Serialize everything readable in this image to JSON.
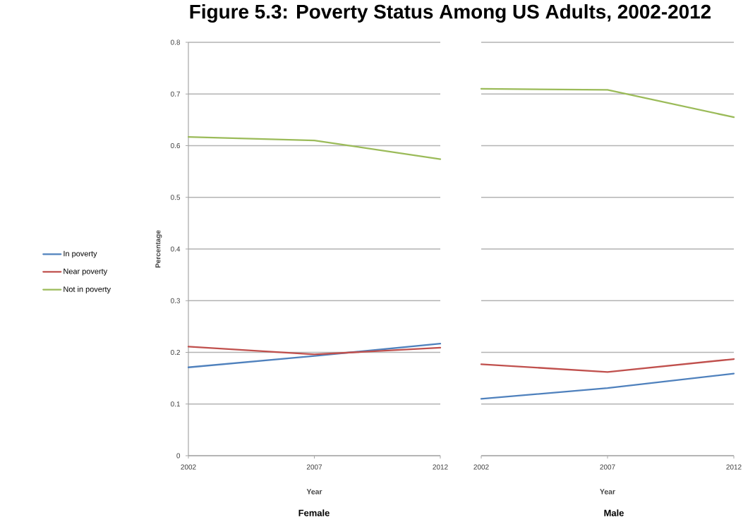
{
  "chart_data": [
    {
      "type": "line",
      "title": "Figure 5.3: Poverty Status Among US Adults, 2002-2012",
      "subtitle": "Female",
      "xlabel": "Year",
      "ylabel": "Percentage",
      "x": [
        2002,
        2007,
        2012
      ],
      "series": [
        {
          "name": "In poverty",
          "color": "#4f81bd",
          "values": [
            0.171,
            0.193,
            0.217
          ]
        },
        {
          "name": "Near poverty",
          "color": "#c0504d",
          "values": [
            0.211,
            0.196,
            0.209
          ]
        },
        {
          "name": "Not in poverty",
          "color": "#9bbb59",
          "values": [
            0.617,
            0.61,
            0.574
          ]
        }
      ],
      "xlim": [
        2002,
        2012
      ],
      "ylim": [
        0,
        0.8
      ],
      "xticks": [
        2002,
        2007,
        2012
      ],
      "yticks": [
        0,
        0.1,
        0.2,
        0.3,
        0.4,
        0.5,
        0.6,
        0.7,
        0.8
      ],
      "grid": "y",
      "legend": "left",
      "marker": "none",
      "line_style": "solid"
    },
    {
      "type": "line",
      "subtitle": "Male",
      "xlabel": "Year",
      "x": [
        2002,
        2007,
        2012
      ],
      "series": [
        {
          "color": "#4f81bd",
          "values": [
            0.11,
            0.131,
            0.159
          ]
        },
        {
          "color": "#c0504d",
          "values": [
            0.177,
            0.162,
            0.187
          ]
        },
        {
          "color": "#9bbb59",
          "values": [
            0.71,
            0.708,
            0.655
          ]
        }
      ],
      "xlim": [
        2002,
        2012
      ],
      "ylim": [
        0,
        0.8
      ],
      "xticks": [
        2002,
        2007,
        2012
      ],
      "yticks": [
        0,
        0.1,
        0.2,
        0.3,
        0.4,
        0.5,
        0.6,
        0.7,
        0.8
      ],
      "grid": "y",
      "marker": "none",
      "line_style": "solid",
      "tick_labels": "x"
    }
  ]
}
